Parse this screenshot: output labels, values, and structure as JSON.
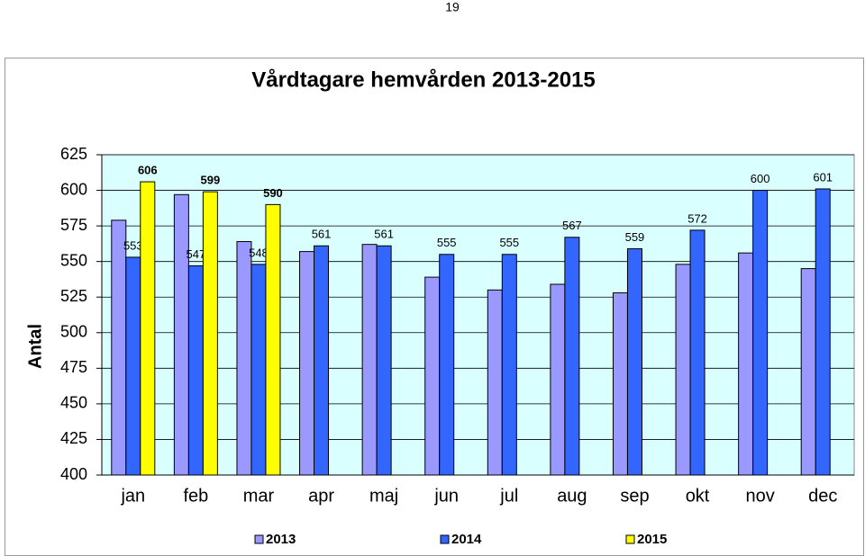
{
  "page_number": "19",
  "chart_data": {
    "type": "bar",
    "title": "Vårdtagare hemvården 2013-2015",
    "y_label": "Antal",
    "categories": [
      "jan",
      "feb",
      "mar",
      "apr",
      "maj",
      "jun",
      "jul",
      "aug",
      "sep",
      "okt",
      "nov",
      "dec"
    ],
    "series": [
      {
        "name": "2013",
        "color": "#9999ff",
        "labels": false,
        "values": [
          579,
          597,
          564,
          557,
          562,
          539,
          530,
          534,
          528,
          548,
          556,
          545
        ]
      },
      {
        "name": "2014",
        "color": "#3366ff",
        "labels": true,
        "values": [
          553,
          547,
          548,
          561,
          561,
          555,
          555,
          567,
          559,
          572,
          600,
          601
        ]
      },
      {
        "name": "2015",
        "color": "#ffff00",
        "labels": true,
        "bold_labels": true,
        "values": [
          606,
          599,
          590,
          null,
          null,
          null,
          null,
          null,
          null,
          null,
          null,
          null
        ]
      }
    ],
    "ylim": [
      400,
      625
    ],
    "yticks": [
      400,
      425,
      450,
      475,
      500,
      525,
      550,
      575,
      600,
      625
    ],
    "grid": true,
    "legend": "bottom",
    "plot_background": "#d9ffff"
  }
}
